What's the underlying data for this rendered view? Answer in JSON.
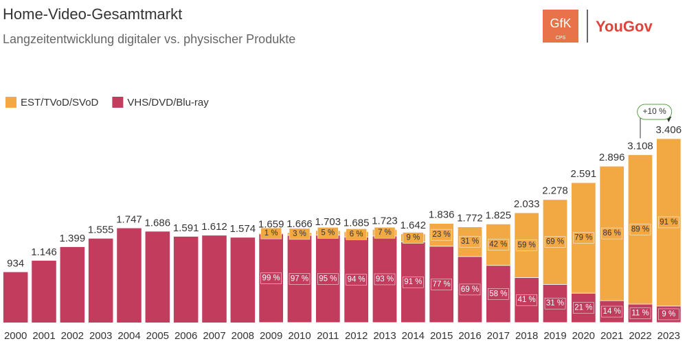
{
  "chart_data": {
    "type": "bar",
    "stacked": true,
    "title": "Home-Video-Gesamtmarkt",
    "subtitle": "Langzeitentwicklung digitaler vs. physischer Produkte",
    "logos": [
      "GfK",
      "CPS",
      "YouGov"
    ],
    "annotation": "+10 %",
    "categories": [
      "2000",
      "2001",
      "2002",
      "2003",
      "2004",
      "2005",
      "2006",
      "2007",
      "2008",
      "2009",
      "2010",
      "2011",
      "2012",
      "2013",
      "2014",
      "2015",
      "2016",
      "2017",
      "2018",
      "2019",
      "2020",
      "2021",
      "2022",
      "2023"
    ],
    "total": {
      "values": [
        934,
        1146,
        1399,
        1555,
        1747,
        1686,
        1591,
        1612,
        1574,
        1659,
        1666,
        1703,
        1685,
        1723,
        1642,
        1836,
        1772,
        1825,
        2033,
        2278,
        2591,
        2896,
        3108,
        3406
      ],
      "value_labels": [
        "934",
        "1.146",
        "1.399",
        "1.555",
        "1.747",
        "1.686",
        "1.591",
        "1.612",
        "1.574",
        "1.659",
        "1.666",
        "1.703",
        "1.685",
        "1.723",
        "1.642",
        "1.836",
        "1.772",
        "1.825",
        "2.033",
        "2.278",
        "2.591",
        "2.896",
        "3.108",
        "3.406"
      ]
    },
    "series": [
      {
        "name": "EST/TVoD/SVoD",
        "color": "#f2a944",
        "values": [
          null,
          null,
          null,
          null,
          null,
          null,
          null,
          null,
          null,
          1,
          3,
          5,
          6,
          7,
          9,
          23,
          31,
          42,
          59,
          69,
          79,
          86,
          89,
          91
        ],
        "value_labels": [
          null,
          null,
          null,
          null,
          null,
          null,
          null,
          null,
          null,
          "1 %",
          "3 %",
          "5 %",
          "6 %",
          "7 %",
          "9 %",
          "23 %",
          "31 %",
          "42 %",
          "59 %",
          "69 %",
          "79 %",
          "86 %",
          "89 %",
          "91 %"
        ]
      },
      {
        "name": "VHS/DVD/Blu-ray",
        "color": "#c13c5d",
        "values": [
          null,
          null,
          null,
          null,
          null,
          null,
          null,
          null,
          null,
          99,
          97,
          95,
          94,
          93,
          91,
          77,
          69,
          58,
          41,
          31,
          21,
          14,
          11,
          9
        ],
        "value_labels": [
          null,
          null,
          null,
          null,
          null,
          null,
          null,
          null,
          null,
          "99 %",
          "97 %",
          "95 %",
          "94 %",
          "93 %",
          "91 %",
          "77 %",
          "69 %",
          "58 %",
          "41 %",
          "31 %",
          "21 %",
          "14 %",
          "11 %",
          "9 %"
        ]
      }
    ]
  }
}
